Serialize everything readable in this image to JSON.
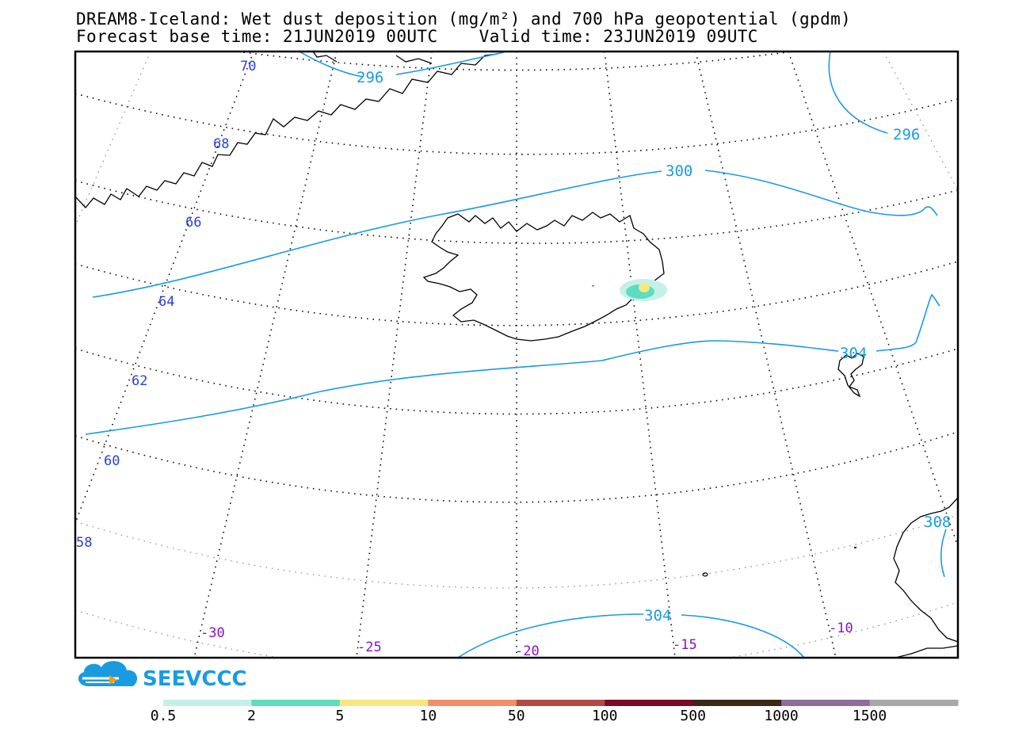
{
  "title": {
    "line1": "DREAM8-Iceland: Wet dust deposition (mg/m²) and 700 hPa geopotential (gpdm)",
    "line2": "Forecast base time: 21JUN2019 00UTC    Valid time: 23JUN2019 09UTC"
  },
  "lat_labels": [
    "70",
    "68",
    "66",
    "64",
    "62",
    "60",
    "58"
  ],
  "lon_labels": [
    "-30",
    "-25",
    "-20",
    "-15",
    "-10"
  ],
  "contour_labels": [
    "296",
    "296",
    "300",
    "304",
    "304",
    "308"
  ],
  "logo": {
    "text": "SEEVCCC"
  },
  "legend": {
    "labels": [
      "0.5",
      "2",
      "5",
      "10",
      "50",
      "100",
      "500",
      "1000",
      "1500"
    ],
    "colors": [
      "#c4f0e8",
      "#5cdcc0",
      "#f8e680",
      "#f0906a",
      "#b04a44",
      "#7a0a28",
      "#3a2818",
      "#8e6c9c",
      "#a8a8a8"
    ]
  },
  "colors": {
    "contour": "#1a9be0",
    "lat_label": "#2b3ee0",
    "lon_label": "#8a10c8",
    "coast": "#000000"
  }
}
